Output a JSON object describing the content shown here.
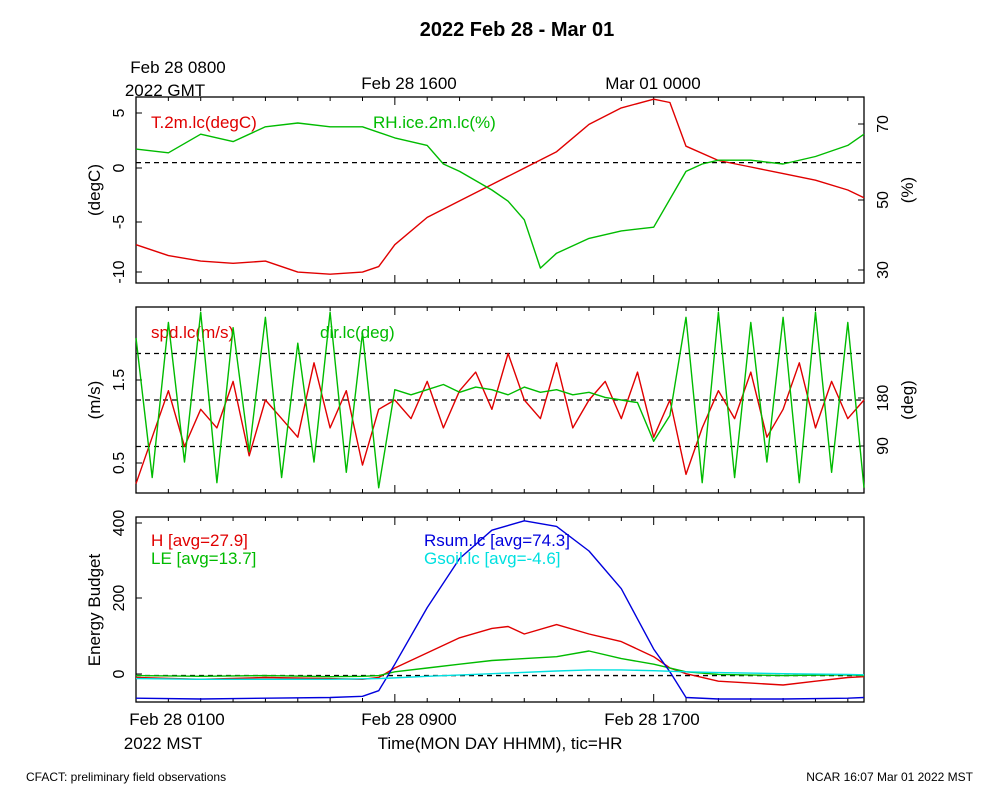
{
  "title": "2022 Feb 28 - Mar 01",
  "top_axis": {
    "labels": [
      {
        "line1": "Feb 28 0800",
        "line2": "2022 GMT"
      },
      {
        "line1": "Feb 28 1600",
        "line2": ""
      },
      {
        "line1": "Mar 01 0000",
        "line2": ""
      }
    ]
  },
  "bottom_axis": {
    "labels": [
      {
        "line1": "Feb 28 0100",
        "line2": "2022 MST"
      },
      {
        "line1": "Feb 28 0900",
        "line2": ""
      },
      {
        "line1": "Feb 28 1700",
        "line2": ""
      }
    ],
    "xlabel": "Time(MON DAY HHMM), tic=HR"
  },
  "footer": {
    "left": "CFACT: preliminary field observations",
    "right": "NCAR 16:07 Mar 01 2022 MST"
  },
  "colors": {
    "red": "#e00000",
    "green": "#00bb00",
    "blue": "#0000dd",
    "cyan": "#00e0e0"
  },
  "chart_data": [
    {
      "type": "line",
      "panel": "temperature-rh",
      "x_unit": "hours since Feb 28 0100 MST",
      "xlim": [
        0,
        22.5
      ],
      "ylabel_left": "(degC)",
      "ylabel_right": "(%)",
      "ylim_left": [
        -11,
        6
      ],
      "yticks_left": [
        "5",
        "0",
        "-5",
        "-10"
      ],
      "ylim_right": [
        28,
        78
      ],
      "yticks_right": [
        "70",
        "50",
        "30"
      ],
      "zero_line_left": 0,
      "series": [
        {
          "name": "T.2m.lc(degC)",
          "axis": "left",
          "color": "red",
          "x": [
            0,
            1,
            2,
            3,
            4,
            5,
            6,
            7,
            7.5,
            8,
            9,
            10,
            11,
            12,
            13,
            14,
            15,
            16,
            16.5,
            17,
            18,
            19,
            20,
            21,
            22,
            22.5
          ],
          "y": [
            -7.5,
            -8.5,
            -9.0,
            -9.2,
            -9.0,
            -10.0,
            -10.2,
            -10.0,
            -9.5,
            -7.5,
            -5.0,
            -3.5,
            -2.0,
            -0.5,
            1.0,
            3.5,
            5.0,
            5.8,
            5.5,
            1.5,
            0.2,
            -0.4,
            -1.0,
            -1.6,
            -2.5,
            -3.2
          ]
        },
        {
          "name": "RH.ice.2m.lc(%)",
          "axis": "right",
          "color": "green",
          "x": [
            0,
            1,
            2,
            3,
            4,
            5,
            6,
            7,
            8,
            9,
            9.5,
            10,
            11,
            11.5,
            12,
            12.5,
            13,
            14,
            15,
            16,
            17,
            17.5,
            18,
            19,
            20,
            21,
            22,
            22.5
          ],
          "y": [
            64,
            63,
            68,
            66,
            70,
            71,
            70,
            70,
            67,
            65,
            60,
            58,
            53,
            50,
            45,
            32,
            36,
            40,
            42,
            43,
            58,
            60,
            61,
            61,
            60,
            62,
            65,
            68
          ]
        }
      ]
    },
    {
      "type": "line",
      "panel": "wind",
      "x_unit": "hours since Feb 28 0100 MST",
      "xlim": [
        0,
        22.5
      ],
      "ylabel_left": "(m/s)",
      "ylabel_right": "(deg)",
      "ylim_left": [
        0.2,
        2.2
      ],
      "yticks_left": [
        "1.5",
        "0.5"
      ],
      "ylim_right": [
        0,
        360
      ],
      "yticks_right": [
        "180",
        "90"
      ],
      "reference_lines_right": [
        90,
        180,
        270
      ],
      "series": [
        {
          "name": "spd.lc(m/s)",
          "axis": "left",
          "color": "red",
          "x": [
            0,
            0.5,
            1,
            1.5,
            2,
            2.5,
            3,
            3.5,
            4,
            4.5,
            5,
            5.5,
            6,
            6.5,
            7,
            7.5,
            8,
            8.5,
            9,
            9.5,
            10,
            10.5,
            11,
            11.5,
            12,
            12.5,
            13,
            13.5,
            14,
            14.5,
            15,
            15.5,
            16,
            16.5,
            17,
            17.5,
            18,
            18.5,
            19,
            19.5,
            20,
            20.5,
            21,
            21.5,
            22,
            22.5
          ],
          "y": [
            0.3,
            0.8,
            1.3,
            0.7,
            1.1,
            0.9,
            1.4,
            0.6,
            1.2,
            1.0,
            0.8,
            1.6,
            0.9,
            1.3,
            0.5,
            1.1,
            1.2,
            1.0,
            1.4,
            0.9,
            1.3,
            1.5,
            1.1,
            1.7,
            1.2,
            1.0,
            1.6,
            0.9,
            1.2,
            1.4,
            1.0,
            1.5,
            0.8,
            1.2,
            0.4,
            0.9,
            1.3,
            1.0,
            1.5,
            0.8,
            1.1,
            1.6,
            0.9,
            1.4,
            1.0,
            1.2
          ]
        },
        {
          "name": "dir.lc(deg)",
          "axis": "right",
          "color": "green",
          "x": [
            0,
            0.5,
            1,
            1.5,
            2,
            2.5,
            3,
            3.5,
            4,
            4.5,
            5,
            5.5,
            6,
            6.5,
            7,
            7.5,
            8,
            8.5,
            9,
            9.5,
            10,
            10.5,
            11,
            11.5,
            12,
            12.5,
            13,
            13.5,
            14,
            14.5,
            15,
            15.5,
            16,
            16.5,
            17,
            17.5,
            18,
            18.5,
            19,
            19.5,
            20,
            20.5,
            21,
            21.5,
            22,
            22.5
          ],
          "y": [
            300,
            30,
            330,
            60,
            350,
            20,
            320,
            80,
            340,
            30,
            290,
            60,
            350,
            40,
            310,
            10,
            200,
            190,
            200,
            210,
            195,
            205,
            200,
            190,
            205,
            195,
            200,
            190,
            195,
            185,
            180,
            175,
            100,
            150,
            340,
            20,
            350,
            30,
            330,
            60,
            340,
            20,
            350,
            40,
            330,
            10
          ]
        }
      ]
    },
    {
      "type": "line",
      "panel": "energy-budget",
      "x_unit": "hours since Feb 28 0100 MST",
      "xlim": [
        0,
        22.5
      ],
      "ylabel_left": "Energy Budget",
      "ylim_left": [
        -70,
        420
      ],
      "yticks_left": [
        "400",
        "200",
        "0"
      ],
      "zero_line_left": 0,
      "series": [
        {
          "name": "H [avg=27.9]",
          "color": "red",
          "x": [
            0,
            2,
            4,
            6,
            7,
            7.5,
            8,
            9,
            10,
            11,
            11.5,
            12,
            13,
            14,
            15,
            16,
            16.5,
            17,
            18,
            19,
            20,
            21,
            22,
            22.5
          ],
          "y": [
            -5,
            -10,
            -5,
            -8,
            -10,
            -5,
            20,
            60,
            100,
            125,
            130,
            110,
            135,
            110,
            90,
            50,
            20,
            5,
            -15,
            -20,
            -25,
            -15,
            -5,
            -3
          ]
        },
        {
          "name": "LE [avg=13.7]",
          "color": "green",
          "x": [
            0,
            2,
            4,
            6,
            7,
            7.5,
            8,
            9,
            10,
            11,
            12,
            13,
            14,
            15,
            16,
            17,
            18,
            20,
            22,
            22.5
          ],
          "y": [
            0,
            -2,
            0,
            -3,
            -2,
            0,
            10,
            20,
            30,
            40,
            45,
            50,
            65,
            45,
            30,
            10,
            3,
            0,
            2,
            0
          ]
        },
        {
          "name": "Rsum.lc [avg=74.3]",
          "color": "blue",
          "x": [
            0,
            2,
            4,
            6,
            7,
            7.5,
            8,
            9,
            10,
            11,
            12,
            13,
            14,
            15,
            15.5,
            16,
            16.5,
            17,
            18,
            20,
            22,
            22.5
          ],
          "y": [
            -60,
            -62,
            -60,
            -58,
            -55,
            -40,
            30,
            180,
            310,
            385,
            410,
            395,
            330,
            230,
            150,
            70,
            10,
            -58,
            -62,
            -62,
            -60,
            -58
          ]
        },
        {
          "name": "Gsoil.lc [avg=-4.6]",
          "color": "cyan",
          "x": [
            0,
            2,
            4,
            6,
            7.5,
            9,
            11,
            13,
            14,
            15,
            16,
            17,
            18,
            20,
            22,
            22.5
          ],
          "y": [
            -8,
            -10,
            -10,
            -10,
            -8,
            -2,
            5,
            12,
            15,
            15,
            13,
            10,
            8,
            5,
            3,
            2
          ]
        }
      ]
    }
  ]
}
